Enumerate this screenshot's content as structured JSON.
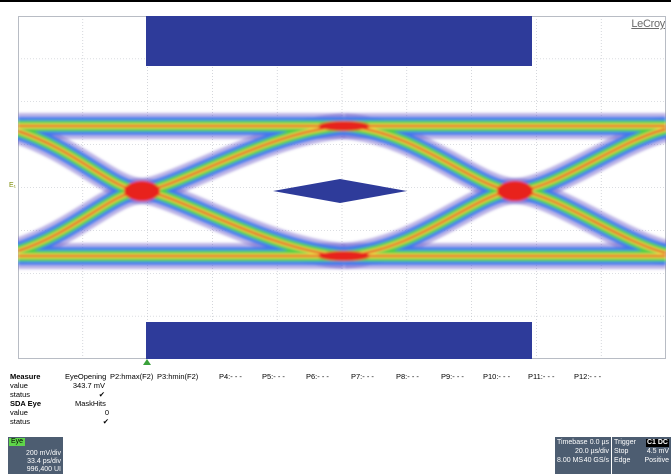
{
  "brand": "LeCroy",
  "channel_marker": "E₁",
  "colors": {
    "mask": "#2e3b9a",
    "grid": "#b8bcc4",
    "eye_outer": "#6b59c8",
    "eye_blue": "#3f78f0",
    "eye_green": "#4fcf4a",
    "eye_yellow": "#e8e34a",
    "eye_red": "#e8241c",
    "panel": "#4d5d71"
  },
  "measure": {
    "header_label": "Measure",
    "columns": [
      "EyeOpening",
      "P2:hmax(F2)",
      "P3:hmin(F2)",
      "P4:- - -",
      "P5:- - -",
      "P6:- - -",
      "P7:- - -",
      "P8:- - -",
      "P9:- - -",
      "P10:- - -",
      "P11:- - -",
      "P12:- - -"
    ],
    "rows": [
      {
        "label": "value",
        "p1": "343.7 mV"
      },
      {
        "label": "status",
        "p1": "✔"
      }
    ]
  },
  "sda": {
    "header_label": "SDA Eye",
    "column": "MaskHits",
    "rows": [
      {
        "label": "value",
        "value": "0"
      },
      {
        "label": "status",
        "value": "✔"
      }
    ]
  },
  "eye_badge": {
    "tag": "Eye",
    "line1": "200 mV/div",
    "line2": "33.4 ps/div",
    "line3": "996,400 UI"
  },
  "timebase": {
    "label": "Timebase",
    "delay": "0.0 µs",
    "div": "20.0 µs/div",
    "samples": "8.00 MS",
    "rate": "40 GS/s"
  },
  "trigger": {
    "label": "Trigger",
    "channel": "C1 DC",
    "mode": "Stop",
    "level": "4.5 mV",
    "type": "Edge",
    "slope": "Positive"
  }
}
